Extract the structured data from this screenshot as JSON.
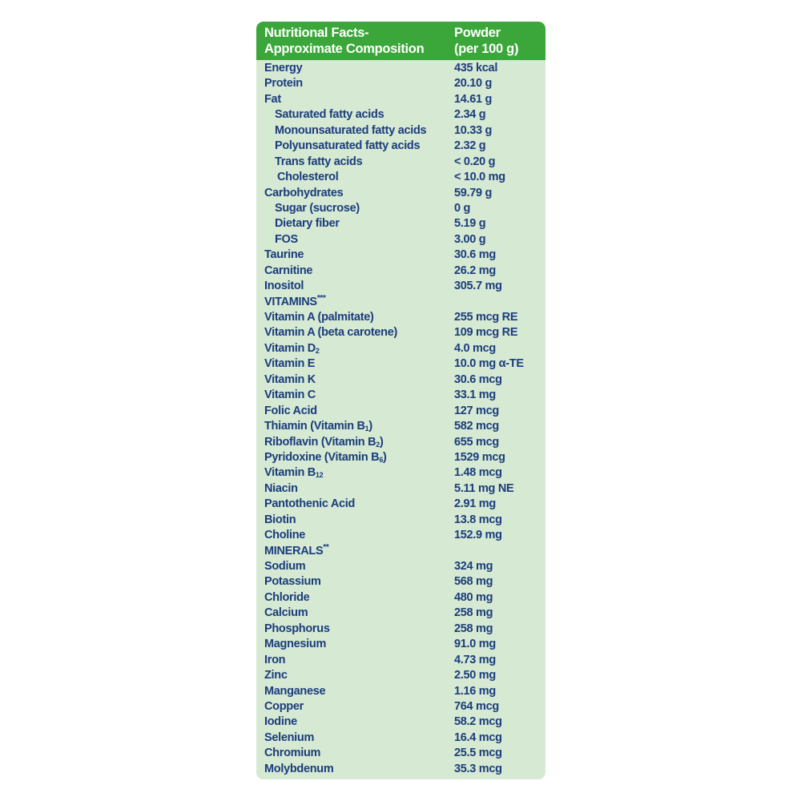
{
  "header": {
    "col1_line1": "Nutritional Facts-",
    "col1_line2": "Approximate Composition",
    "col2_line1": "Powder",
    "col2_line2": "(per 100 g)"
  },
  "colors": {
    "header_bg": "#3ba63a",
    "body_bg": "#d6e9d3",
    "text": "#1b3c7c"
  },
  "rows": [
    {
      "label": "Energy",
      "value": "435 kcal",
      "indent": 0
    },
    {
      "label": "Protein",
      "value": "20.10 g",
      "indent": 0
    },
    {
      "label": "Fat",
      "value": "14.61 g",
      "indent": 0
    },
    {
      "label": "Saturated fatty acids",
      "value": "2.34 g",
      "indent": 1
    },
    {
      "label": "Monounsaturated fatty acids",
      "value": "10.33 g",
      "indent": 1
    },
    {
      "label": "Polyunsaturated fatty acids",
      "value": "2.32 g",
      "indent": 1
    },
    {
      "label": "Trans fatty acids",
      "value": "< 0.20 g",
      "indent": 1
    },
    {
      "label": "Cholesterol",
      "value": "< 10.0 mg",
      "indent": 2
    },
    {
      "label": "Carbohydrates",
      "value": "59.79 g",
      "indent": 0
    },
    {
      "label": "Sugar (sucrose)",
      "value": "0 g",
      "indent": 1
    },
    {
      "label": "Dietary fiber",
      "value": "5.19 g",
      "indent": 1
    },
    {
      "label": "FOS",
      "value": "3.00 g",
      "indent": 1
    },
    {
      "label": "Taurine",
      "value": "30.6 mg",
      "indent": 0
    },
    {
      "label": "Carnitine",
      "value": "26.2 mg",
      "indent": 0
    },
    {
      "label": "Inositol",
      "value": "305.7 mg",
      "indent": 0
    },
    {
      "label": "VITAMINS",
      "sup": "***",
      "value": "",
      "indent": 0
    },
    {
      "label": "Vitamin A (palmitate)",
      "value": "255 mcg RE",
      "indent": 0
    },
    {
      "label": "Vitamin A (beta carotene)",
      "value": "109 mcg RE",
      "indent": 0
    },
    {
      "label": "Vitamin D",
      "sub": "2",
      "value": "4.0 mcg",
      "indent": 0
    },
    {
      "label": "Vitamin E",
      "value": "10.0 mg α-TE",
      "indent": 0
    },
    {
      "label": "Vitamin K",
      "value": "30.6 mcg",
      "indent": 0
    },
    {
      "label": "Vitamin C",
      "value": "33.1 mg",
      "indent": 0
    },
    {
      "label": "Folic Acid",
      "value": "127 mcg",
      "indent": 0
    },
    {
      "label": "Thiamin (Vitamin B",
      "sub": "1",
      "after": ")",
      "value": "582 mcg",
      "indent": 0
    },
    {
      "label": "Riboflavin (Vitamin B",
      "sub": "2",
      "after": ")",
      "value": "655 mcg",
      "indent": 0
    },
    {
      "label": "Pyridoxine (Vitamin B",
      "sub": "6",
      "after": ")",
      "value": "1529 mcg",
      "indent": 0
    },
    {
      "label": "Vitamin B",
      "sub": "12",
      "value": "1.48 mcg",
      "indent": 0
    },
    {
      "label": "Niacin",
      "value": "5.11 mg NE",
      "indent": 0
    },
    {
      "label": "Pantothenic Acid",
      "value": "2.91 mg",
      "indent": 0
    },
    {
      "label": "Biotin",
      "value": "13.8 mcg",
      "indent": 0
    },
    {
      "label": "Choline",
      "value": "152.9 mg",
      "indent": 0
    },
    {
      "label": "MINERALS",
      "sup": "**",
      "value": "",
      "indent": 0
    },
    {
      "label": "Sodium",
      "value": "324 mg",
      "indent": 0
    },
    {
      "label": "Potassium",
      "value": "568 mg",
      "indent": 0
    },
    {
      "label": "Chloride",
      "value": "480 mg",
      "indent": 0
    },
    {
      "label": "Calcium",
      "value": "258 mg",
      "indent": 0
    },
    {
      "label": "Phosphorus",
      "value": "258 mg",
      "indent": 0
    },
    {
      "label": "Magnesium",
      "value": "91.0 mg",
      "indent": 0
    },
    {
      "label": "Iron",
      "value": "4.73 mg",
      "indent": 0
    },
    {
      "label": "Zinc",
      "value": "2.50 mg",
      "indent": 0
    },
    {
      "label": "Manganese",
      "value": "1.16 mg",
      "indent": 0
    },
    {
      "label": "Copper",
      "value": "764 mcg",
      "indent": 0
    },
    {
      "label": "Iodine",
      "value": "58.2 mcg",
      "indent": 0
    },
    {
      "label": "Selenium",
      "value": "16.4 mcg",
      "indent": 0
    },
    {
      "label": "Chromium",
      "value": "25.5 mcg",
      "indent": 0
    },
    {
      "label": "Molybdenum",
      "value": "35.3 mcg",
      "indent": 0
    }
  ]
}
